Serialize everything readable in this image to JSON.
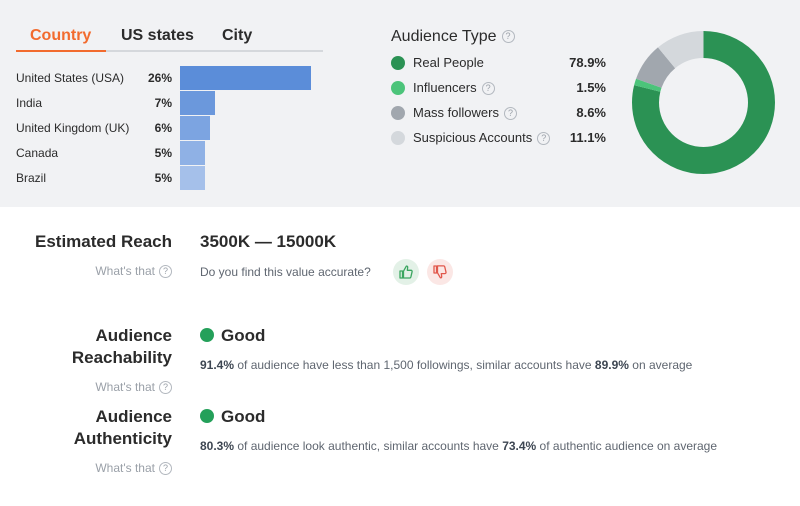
{
  "tabs": [
    {
      "label": "Country",
      "active": true
    },
    {
      "label": "US states",
      "active": false
    },
    {
      "label": "City",
      "active": false
    }
  ],
  "countries": [
    {
      "name": "United States (USA)",
      "pct": "26%",
      "value": 26,
      "color": "#5b8dd9"
    },
    {
      "name": "India",
      "pct": "7%",
      "value": 7,
      "color": "#6b98dc"
    },
    {
      "name": "United Kingdom (UK)",
      "pct": "6%",
      "value": 6,
      "color": "#7ca4e1"
    },
    {
      "name": "Canada",
      "pct": "5%",
      "value": 5,
      "color": "#8fb1e5"
    },
    {
      "name": "Brazil",
      "pct": "5%",
      "value": 5,
      "color": "#a5c0ea"
    }
  ],
  "audience_type": {
    "title": "Audience Type",
    "items": [
      {
        "label": "Real People",
        "value": "78.9%",
        "num": 78.9,
        "color": "#2b9254",
        "help": false
      },
      {
        "label": "Influencers",
        "value": "1.5%",
        "num": 1.5,
        "color": "#4cc47a",
        "help": true
      },
      {
        "label": "Mass followers",
        "value": "8.6%",
        "num": 8.6,
        "color": "#a1a7ae",
        "help": true
      },
      {
        "label": "Suspicious Accounts",
        "value": "11.1%",
        "num": 11.1,
        "color": "#d4d8dc",
        "help": true
      }
    ]
  },
  "reach": {
    "title": "Estimated Reach",
    "whats": "What's that",
    "value": "3500K — 15000K",
    "question": "Do you find this value accurate?"
  },
  "reachability": {
    "title_line1": "Audience",
    "title_line2": "Reachability",
    "whats": "What's that",
    "status": "Good",
    "pct": "91.4%",
    "text_mid": " of audience have less than 1,500 followings, similar accounts have ",
    "avg": "89.9%",
    "text_end": " on average"
  },
  "authenticity": {
    "title_line1": "Audience",
    "title_line2": "Authenticity",
    "whats": "What's that",
    "status": "Good",
    "pct": "80.3%",
    "text_mid": " of audience look authentic, similar accounts have ",
    "avg": "73.4%",
    "text_end": " of authentic audience on average"
  },
  "icons": {
    "help": "question-circle-icon",
    "like": "thumbs-up-icon",
    "dislike": "thumbs-down-icon"
  },
  "colors": {
    "accent": "#f26b2e",
    "good": "#24a05a",
    "like_bg": "#e3f1e7",
    "like_fg": "#3aa55f",
    "dislike_bg": "#fbe7e5",
    "dislike_fg": "#e1574b"
  }
}
